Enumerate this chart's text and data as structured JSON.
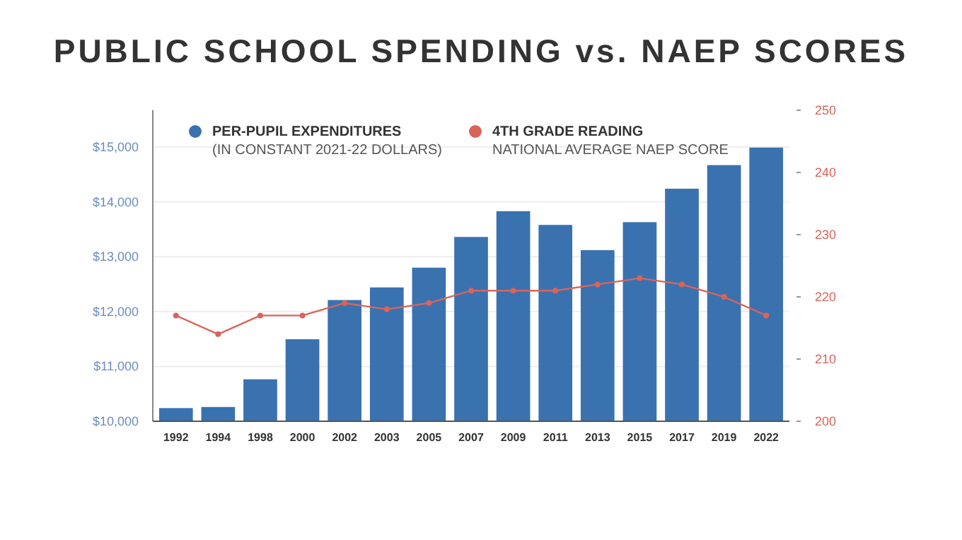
{
  "chart_data": {
    "type": "bar",
    "title": "PUBLIC SCHOOL SPENDING vs. NAEP SCORES",
    "categories": [
      "1992",
      "1994",
      "1998",
      "2000",
      "2002",
      "2003",
      "2005",
      "2007",
      "2009",
      "2011",
      "2013",
      "2015",
      "2017",
      "2019",
      "2022"
    ],
    "series": [
      {
        "name": "PER-PUPIL EXPENDITURES\n(IN CONSTANT 2021-22 DOLLARS)",
        "color": "#3a72b0",
        "values": [
          10240,
          10260,
          10765,
          11495,
          12210,
          12440,
          12800,
          13360,
          13830,
          13580,
          13120,
          13630,
          14240,
          14670,
          14990
        ]
      },
      {
        "name": "4TH GRADE READING\nNATIONAL AVERAGE NAEP SCORE",
        "type": "line",
        "axis": "y2",
        "color": "#d9645a",
        "values": [
          217,
          214,
          217,
          217,
          219,
          218,
          219,
          221,
          221,
          221,
          222,
          223,
          222,
          220,
          217
        ]
      }
    ],
    "ylim": [
      10000,
      15670
    ],
    "yticks": [
      {
        "value": 10000,
        "label": "$10,000"
      },
      {
        "value": 11000,
        "label": "$11,000"
      },
      {
        "value": 12000,
        "label": "$12,000"
      },
      {
        "value": 13000,
        "label": "$13,000"
      },
      {
        "value": 14000,
        "label": "$14,000"
      },
      {
        "value": 15000,
        "label": "$15,000"
      }
    ],
    "y2lim": [
      200,
      250
    ],
    "y2ticks": [
      200,
      210,
      220,
      230,
      240,
      250
    ],
    "grid": "y",
    "legend": "top left",
    "marker": "circle"
  }
}
